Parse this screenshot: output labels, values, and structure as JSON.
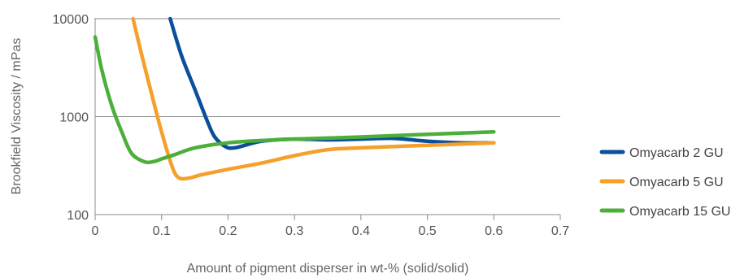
{
  "chart_data": {
    "type": "line",
    "xlabel": "Amount of pigment disperser in wt-% (solid/solid)",
    "ylabel": "Brookfield Viscosity / mPas",
    "xlim": [
      0,
      0.7
    ],
    "ylim": [
      100,
      10000
    ],
    "yscale": "log",
    "x_ticks": [
      "0",
      "0.1",
      "0.2",
      "0.3",
      "0.4",
      "0.5",
      "0.6",
      "0.7"
    ],
    "y_ticks": [
      "100",
      "1000",
      "10000"
    ],
    "grid": "horizontal",
    "legend_position": "right",
    "series": [
      {
        "name": "Omyacarb 2 GU",
        "color": "#0a4f9c",
        "x": [
          0.113,
          0.13,
          0.15,
          0.17,
          0.18,
          0.195,
          0.21,
          0.25,
          0.3,
          0.35,
          0.4,
          0.45,
          0.5,
          0.55,
          0.6
        ],
        "y": [
          10000,
          4200,
          1900,
          860,
          620,
          500,
          480,
          560,
          590,
          580,
          590,
          600,
          560,
          540,
          540
        ]
      },
      {
        "name": "Omyacarb 5 GU",
        "color": "#f5a02a",
        "x": [
          0.057,
          0.07,
          0.085,
          0.1,
          0.115,
          0.125,
          0.14,
          0.16,
          0.2,
          0.25,
          0.3,
          0.35,
          0.4,
          0.5,
          0.6
        ],
        "y": [
          10000,
          4300,
          1700,
          700,
          320,
          240,
          235,
          255,
          290,
          335,
          400,
          460,
          480,
          510,
          540
        ]
      },
      {
        "name": "Omyacarb 15 GU",
        "color": "#4caf3a",
        "x": [
          0,
          0.01,
          0.025,
          0.04,
          0.055,
          0.075,
          0.09,
          0.1,
          0.12,
          0.15,
          0.2,
          0.25,
          0.3,
          0.4,
          0.5,
          0.6
        ],
        "y": [
          6500,
          3000,
          1300,
          700,
          420,
          345,
          350,
          370,
          410,
          480,
          540,
          570,
          590,
          620,
          660,
          700
        ]
      }
    ]
  }
}
